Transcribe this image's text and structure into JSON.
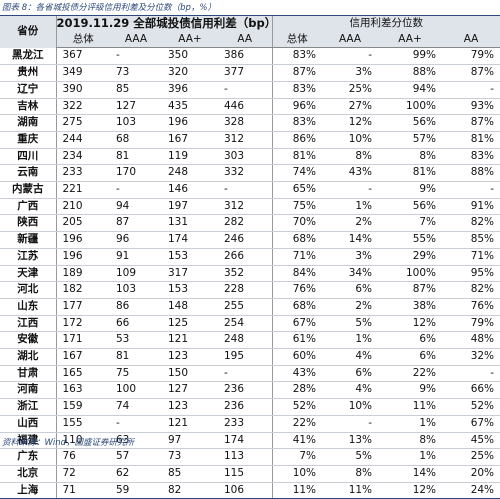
{
  "caption": "图表 8：各省城投债分评级信用利差及分位数（bp，%）",
  "header": {
    "province_label": "省份",
    "spread_title": "2019.11.29 全部城投债信用利差（bp）",
    "percentile_title": "信用利差分位数",
    "columns": [
      "总体",
      "AAA",
      "AA+",
      "AA",
      "总体",
      "AAA",
      "AA+",
      "AA"
    ]
  },
  "rows": [
    {
      "prov": "黑龙江",
      "v": [
        "367",
        "-",
        "350",
        "386",
        "83%",
        "-",
        "99%",
        "79%"
      ]
    },
    {
      "prov": "贵州",
      "v": [
        "349",
        "73",
        "320",
        "377",
        "87%",
        "3%",
        "88%",
        "87%"
      ]
    },
    {
      "prov": "辽宁",
      "v": [
        "390",
        "85",
        "396",
        "-",
        "83%",
        "25%",
        "94%",
        "-"
      ]
    },
    {
      "prov": "吉林",
      "v": [
        "322",
        "127",
        "435",
        "446",
        "96%",
        "27%",
        "100%",
        "93%"
      ]
    },
    {
      "prov": "湖南",
      "v": [
        "275",
        "103",
        "196",
        "328",
        "83%",
        "12%",
        "56%",
        "87%"
      ]
    },
    {
      "prov": "重庆",
      "v": [
        "244",
        "68",
        "167",
        "312",
        "86%",
        "10%",
        "57%",
        "81%"
      ]
    },
    {
      "prov": "四川",
      "v": [
        "234",
        "81",
        "119",
        "303",
        "81%",
        "8%",
        "8%",
        "83%"
      ]
    },
    {
      "prov": "云南",
      "v": [
        "233",
        "170",
        "248",
        "332",
        "74%",
        "43%",
        "81%",
        "88%"
      ]
    },
    {
      "prov": "内蒙古",
      "v": [
        "221",
        "-",
        "146",
        "-",
        "65%",
        "-",
        "9%",
        "-"
      ]
    },
    {
      "prov": "广西",
      "v": [
        "210",
        "94",
        "197",
        "312",
        "75%",
        "1%",
        "56%",
        "91%"
      ]
    },
    {
      "prov": "陕西",
      "v": [
        "205",
        "87",
        "131",
        "282",
        "70%",
        "2%",
        "7%",
        "82%"
      ]
    },
    {
      "prov": "新疆",
      "v": [
        "196",
        "96",
        "174",
        "246",
        "68%",
        "14%",
        "55%",
        "85%"
      ]
    },
    {
      "prov": "江苏",
      "v": [
        "196",
        "91",
        "153",
        "266",
        "71%",
        "3%",
        "29%",
        "71%"
      ]
    },
    {
      "prov": "天津",
      "v": [
        "189",
        "109",
        "317",
        "352",
        "84%",
        "34%",
        "100%",
        "95%"
      ]
    },
    {
      "prov": "河北",
      "v": [
        "182",
        "103",
        "153",
        "228",
        "76%",
        "6%",
        "87%",
        "82%"
      ]
    },
    {
      "prov": "山东",
      "v": [
        "177",
        "86",
        "148",
        "255",
        "68%",
        "2%",
        "38%",
        "76%"
      ]
    },
    {
      "prov": "江西",
      "v": [
        "172",
        "66",
        "125",
        "254",
        "67%",
        "5%",
        "12%",
        "79%"
      ]
    },
    {
      "prov": "安徽",
      "v": [
        "171",
        "53",
        "121",
        "248",
        "61%",
        "1%",
        "6%",
        "48%"
      ]
    },
    {
      "prov": "湖北",
      "v": [
        "167",
        "81",
        "123",
        "195",
        "60%",
        "4%",
        "6%",
        "32%"
      ]
    },
    {
      "prov": "甘肃",
      "v": [
        "165",
        "75",
        "150",
        "-",
        "43%",
        "6%",
        "22%",
        "-"
      ]
    },
    {
      "prov": "河南",
      "v": [
        "163",
        "100",
        "127",
        "236",
        "28%",
        "4%",
        "9%",
        "66%"
      ]
    },
    {
      "prov": "浙江",
      "v": [
        "159",
        "74",
        "123",
        "236",
        "52%",
        "10%",
        "11%",
        "52%"
      ]
    },
    {
      "prov": "山西",
      "v": [
        "155",
        "-",
        "121",
        "233",
        "22%",
        "-",
        "1%",
        "67%"
      ]
    },
    {
      "prov": "福建",
      "v": [
        "110",
        "63",
        "97",
        "174",
        "41%",
        "13%",
        "8%",
        "45%"
      ]
    },
    {
      "prov": "广东",
      "v": [
        "76",
        "57",
        "73",
        "113",
        "7%",
        "5%",
        "1%",
        "25%"
      ]
    },
    {
      "prov": "北京",
      "v": [
        "72",
        "62",
        "85",
        "115",
        "10%",
        "8%",
        "14%",
        "20%"
      ]
    },
    {
      "prov": "上海",
      "v": [
        "71",
        "59",
        "82",
        "106",
        "11%",
        "11%",
        "12%",
        "24%"
      ]
    }
  ],
  "source": "资料来源：Wind，国盛证券研究所"
}
